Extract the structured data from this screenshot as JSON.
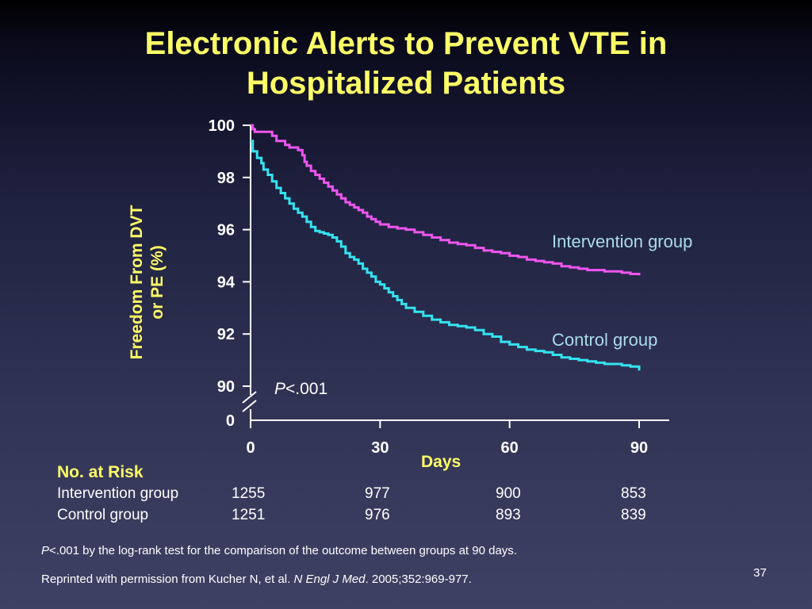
{
  "slide": {
    "title_line1": "Electronic Alerts to Prevent VTE in",
    "title_line2": "Hospitalized Patients",
    "number": "37"
  },
  "chart_data": {
    "type": "line",
    "ylabel_line1": "Freedom From DVT",
    "ylabel_line2": "or PE (%)",
    "xlabel": "Days",
    "ylim": [
      90,
      100
    ],
    "y_ticks": [
      "100",
      "98",
      "96",
      "94",
      "92",
      "90"
    ],
    "y_tick_values": [
      100,
      98,
      96,
      94,
      92,
      90
    ],
    "y_break_label": "0",
    "x_ticks": [
      "0",
      "30",
      "60",
      "90"
    ],
    "x_tick_values": [
      0,
      30,
      60,
      90
    ],
    "xlim": [
      0,
      90
    ],
    "grid": false,
    "annotation_p": "P",
    "annotation_value": "<.001",
    "series": [
      {
        "name": "Intervention group",
        "color": "#ee55ee",
        "x": [
          0,
          0.5,
          1,
          5,
          6,
          8,
          9,
          11,
          12,
          12.5,
          13,
          14,
          15,
          16,
          17,
          18,
          19,
          20,
          21,
          22,
          23,
          24,
          25,
          26,
          27,
          28,
          29,
          30,
          32,
          34,
          36,
          38,
          40,
          42,
          44,
          46,
          48,
          50,
          52,
          54,
          56,
          58,
          60,
          62,
          64,
          66,
          68,
          70,
          72,
          74,
          76,
          78,
          80,
          82,
          84,
          86,
          88,
          90
        ],
        "y": [
          100,
          99.85,
          99.75,
          99.6,
          99.4,
          99.25,
          99.15,
          99.05,
          98.85,
          98.6,
          98.45,
          98.25,
          98.1,
          97.95,
          97.8,
          97.65,
          97.5,
          97.35,
          97.2,
          97.05,
          96.95,
          96.85,
          96.75,
          96.65,
          96.5,
          96.4,
          96.3,
          96.2,
          96.1,
          96.05,
          96.0,
          95.9,
          95.8,
          95.7,
          95.6,
          95.5,
          95.45,
          95.4,
          95.3,
          95.2,
          95.15,
          95.1,
          95.0,
          94.95,
          94.85,
          94.8,
          94.75,
          94.7,
          94.6,
          94.55,
          94.5,
          94.45,
          94.45,
          94.4,
          94.4,
          94.35,
          94.3,
          94.25
        ]
      },
      {
        "name": "Control group",
        "color": "#33e3ef",
        "x": [
          0,
          0.5,
          1.5,
          2.5,
          3,
          4,
          5,
          6,
          7,
          8,
          9,
          10,
          11,
          12,
          13,
          14,
          15,
          16,
          17,
          18,
          19,
          20,
          21,
          22,
          23,
          24,
          25,
          26,
          27,
          28,
          29,
          30,
          31,
          32,
          33,
          34,
          35,
          36,
          38,
          40,
          42,
          44,
          46,
          48,
          50,
          52,
          54,
          56,
          58,
          60,
          62,
          64,
          66,
          68,
          70,
          72,
          74,
          76,
          78,
          80,
          82,
          84,
          86,
          88,
          90
        ],
        "y": [
          99.4,
          99.0,
          98.75,
          98.55,
          98.3,
          98.1,
          97.85,
          97.6,
          97.4,
          97.2,
          97.0,
          96.8,
          96.65,
          96.5,
          96.3,
          96.1,
          95.95,
          95.9,
          95.85,
          95.8,
          95.7,
          95.55,
          95.35,
          95.1,
          94.95,
          94.85,
          94.7,
          94.5,
          94.35,
          94.2,
          94.0,
          93.9,
          93.75,
          93.6,
          93.45,
          93.3,
          93.15,
          93.0,
          92.85,
          92.7,
          92.55,
          92.45,
          92.35,
          92.3,
          92.25,
          92.15,
          92.0,
          91.9,
          91.7,
          91.6,
          91.5,
          91.4,
          91.35,
          91.3,
          91.2,
          91.1,
          91.05,
          91.0,
          90.95,
          90.9,
          90.85,
          90.85,
          90.8,
          90.75,
          90.6
        ]
      }
    ]
  },
  "risk_table": {
    "title": "No. at Risk",
    "rows": [
      {
        "label": "Intervention group",
        "values": [
          "1255",
          "977",
          "900",
          "853"
        ]
      },
      {
        "label": "Control group",
        "values": [
          "1251",
          "976",
          "893",
          "839"
        ]
      }
    ]
  },
  "footnotes": {
    "line1_p": "P",
    "line1_rest": "<.001 by the log-rank test for the comparison of the outcome between groups at 90 days.",
    "line2_a": "Reprinted with permission from Kucher N, et al. ",
    "line2_journal": "N Engl J Med",
    "line2_b": ". 2005;352:969-977."
  }
}
